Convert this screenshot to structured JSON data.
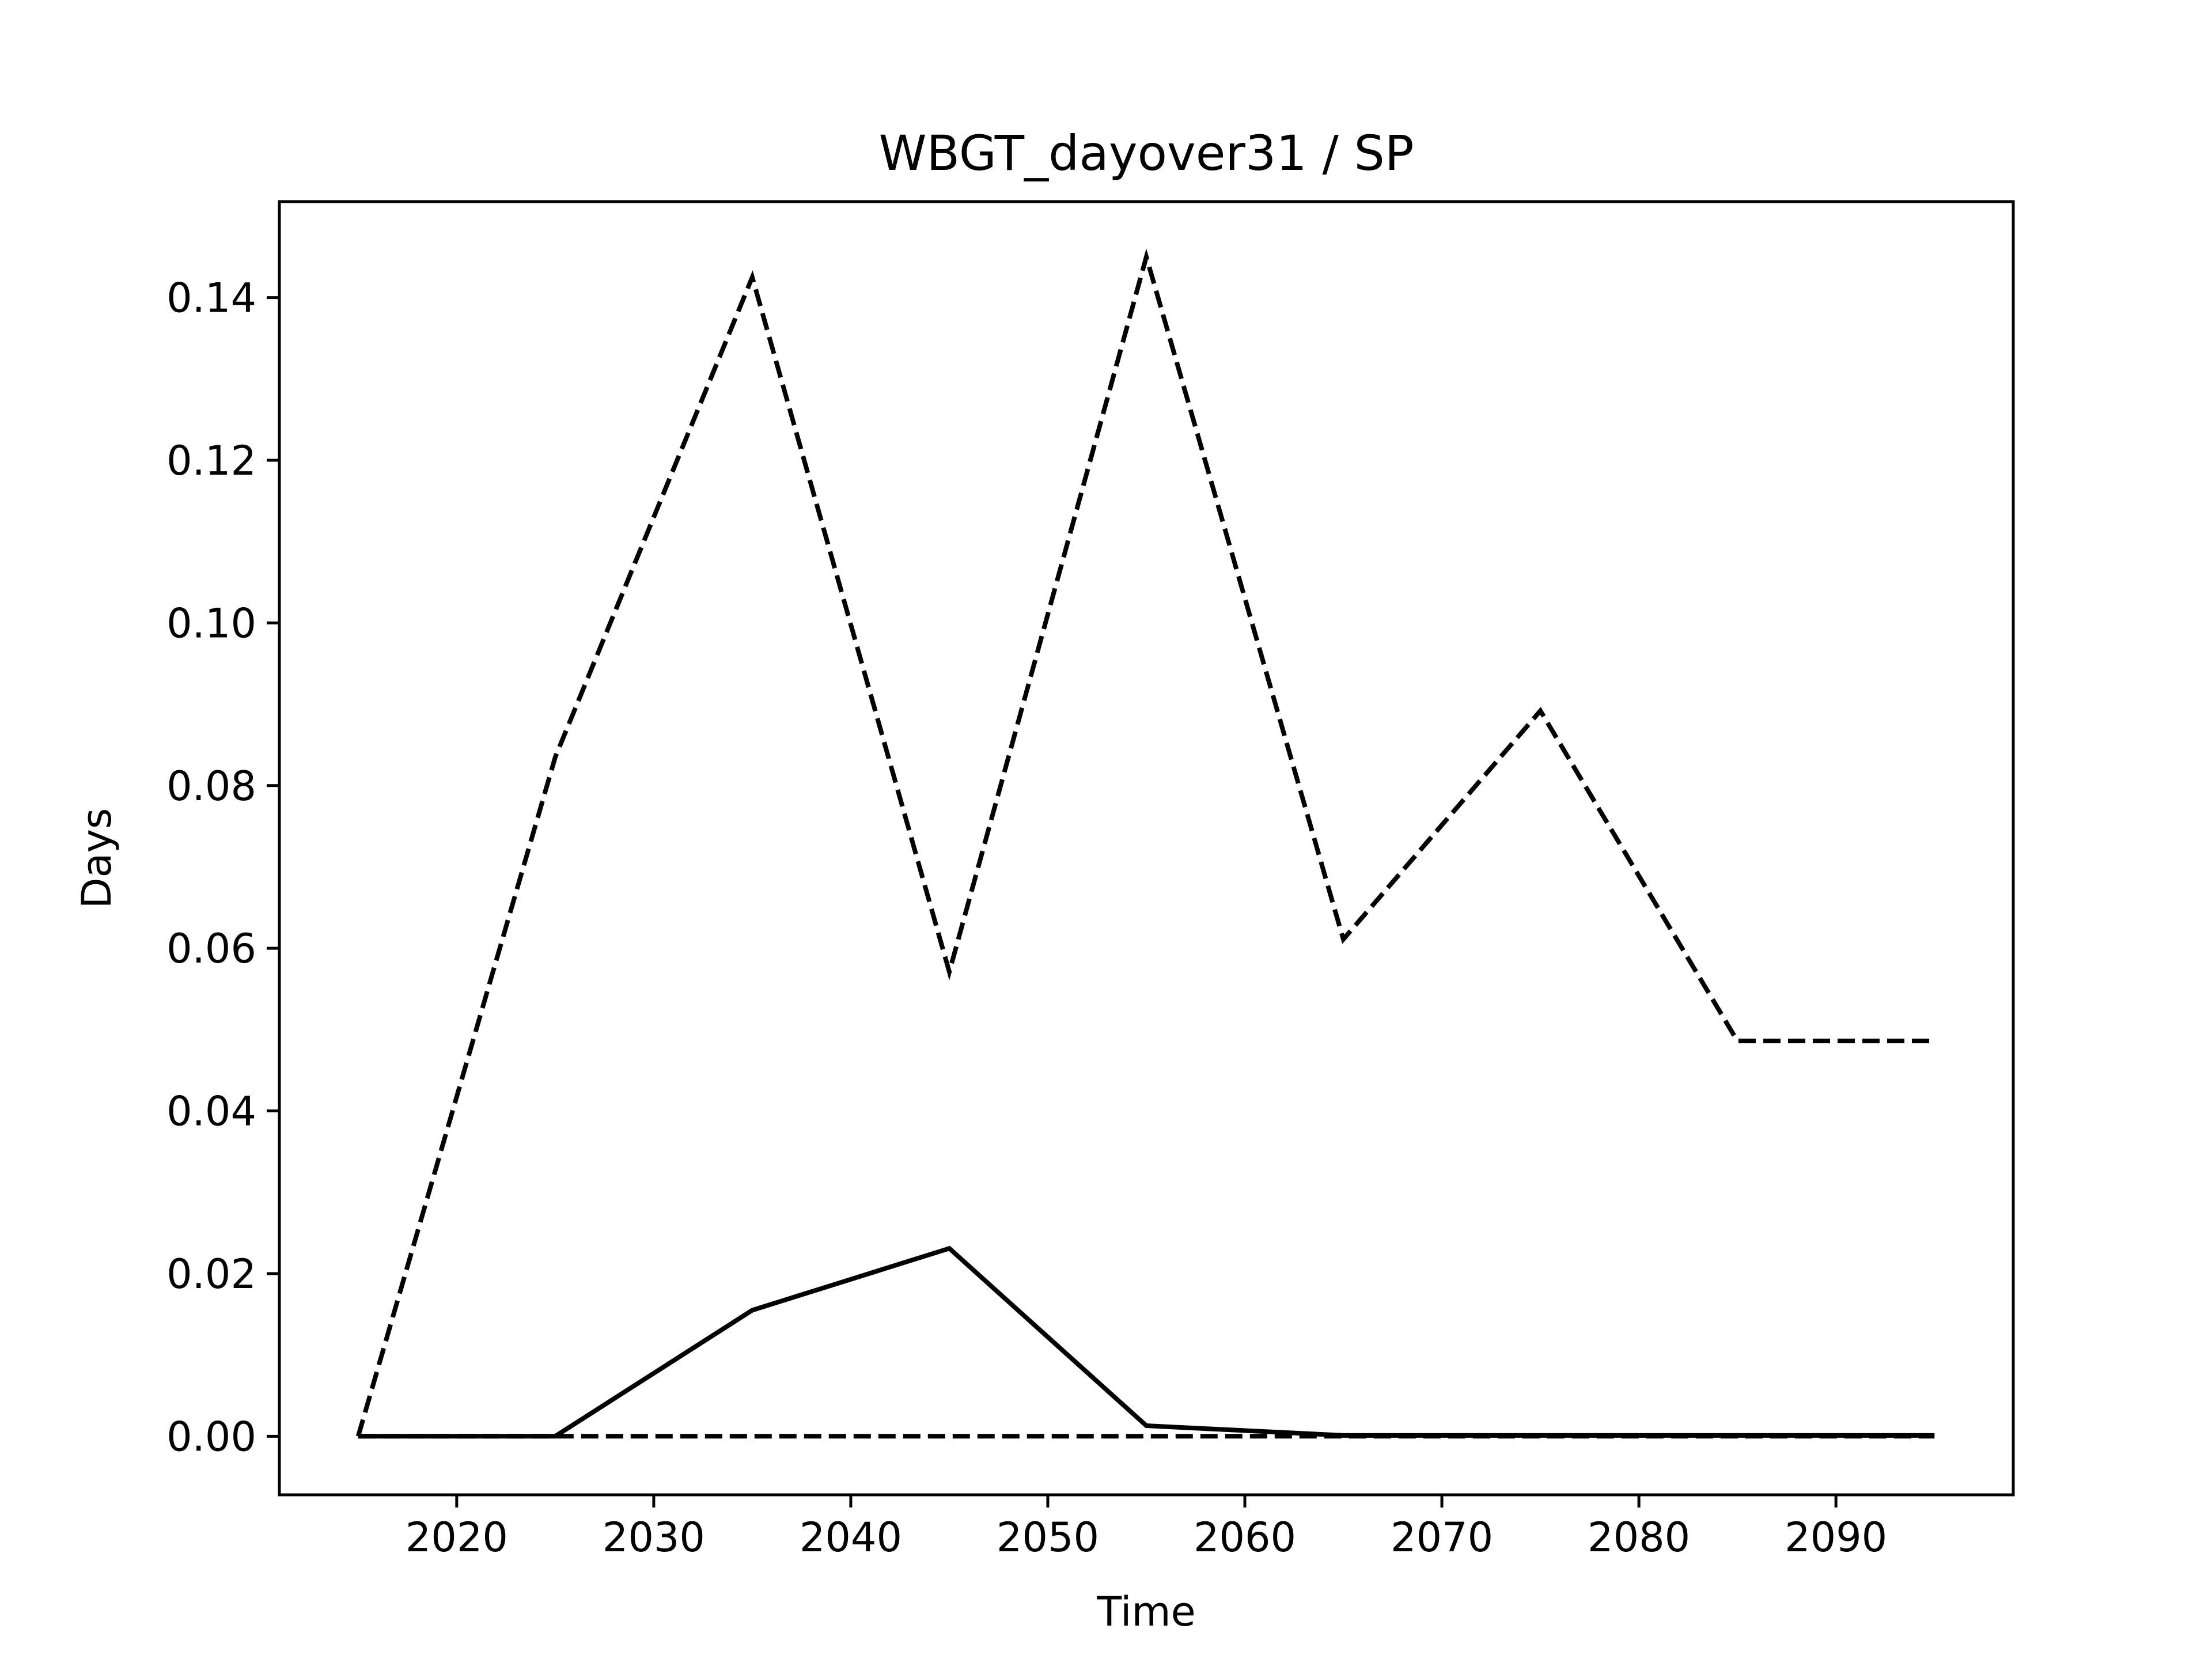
{
  "chart_data": {
    "type": "line",
    "title": "WBGT_dayover31 / SP",
    "xlabel": "Time",
    "ylabel": "Days",
    "xlim": [
      2011,
      2099
    ],
    "ylim": [
      -0.0072,
      0.1518
    ],
    "x_ticks": [
      2020,
      2030,
      2040,
      2050,
      2060,
      2070,
      2080,
      2090
    ],
    "y_ticks": [
      0.0,
      0.02,
      0.04,
      0.06,
      0.08,
      0.1,
      0.12,
      0.14
    ],
    "y_tick_labels": [
      "0.00",
      "0.02",
      "0.04",
      "0.06",
      "0.08",
      "0.10",
      "0.12",
      "0.14"
    ],
    "grid": false,
    "legend": "none",
    "x": [
      2015,
      2025,
      2035,
      2045,
      2055,
      2065,
      2075,
      2085,
      2095
    ],
    "series": [
      {
        "style": "solid",
        "color": "#000000",
        "values": [
          0.0,
          0.0,
          0.0155,
          0.0231,
          0.0013,
          0.0001,
          0.0001,
          0.0001,
          0.0001
        ]
      },
      {
        "style": "dashed",
        "color": "#000000",
        "values": [
          0.0,
          0.0835,
          0.1425,
          0.0571,
          0.145,
          0.0611,
          0.0892,
          0.0486,
          0.0486
        ]
      },
      {
        "style": "dashed",
        "color": "#000000",
        "values": [
          0.0,
          0.0,
          0.0,
          0.0,
          0.0,
          0.0,
          0.0,
          0.0,
          0.0
        ]
      }
    ]
  }
}
